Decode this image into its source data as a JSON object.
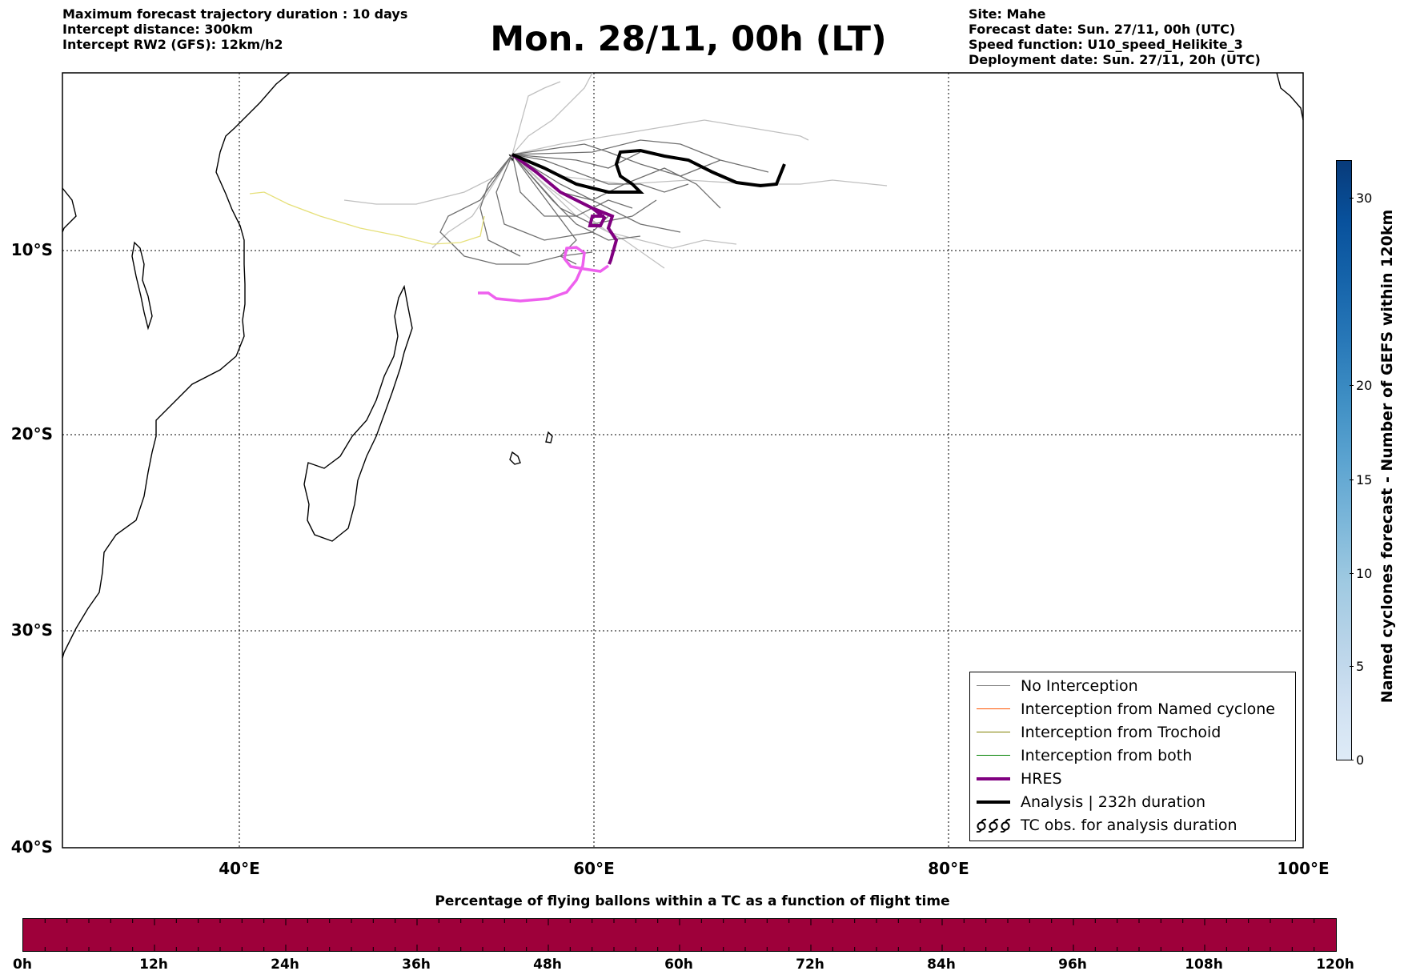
{
  "header": {
    "left_lines": [
      "Maximum forecast trajectory duration : 10 days",
      "Intercept distance: 300km",
      "Intercept RW2 (GFS):  12km/h2"
    ],
    "title": "Mon. 28/11, 00h (LT)",
    "right_lines": [
      "Site: Mahe",
      "Forecast date: Sun. 27/11, 00h (UTC)",
      "Speed function: U10_speed_Helikite_3",
      "Deployment date: Sun. 27/11, 20h (UTC)"
    ]
  },
  "map": {
    "lon_range": [
      30,
      100
    ],
    "lat_range": [
      -40,
      0
    ],
    "lat_labels": [
      "10°S",
      "20°S",
      "30°S",
      "40°S"
    ],
    "lon_labels": [
      "40°E",
      "60°E",
      "80°E",
      "100°E"
    ],
    "gridlines": "dotted",
    "site": "Mahe"
  },
  "legend": {
    "placement": "lower-right",
    "items": [
      {
        "label": "No Interception",
        "color": "#808080",
        "style": "thin"
      },
      {
        "label": "Interception from Named cyclone",
        "color": "#ff5500",
        "style": "thin"
      },
      {
        "label": "Interception from Trochoid",
        "color": "#808000",
        "style": "thin"
      },
      {
        "label": "Interception from both",
        "color": "#008000",
        "style": "thin"
      },
      {
        "label": "HRES",
        "color": "#800080",
        "style": "thick"
      },
      {
        "label": "Analysis | 232h duration",
        "color": "#000000",
        "style": "thick"
      },
      {
        "label": "TC obs. for analysis duration",
        "color": "#000000",
        "style": "symbol",
        "icon": "cyclone-symbol"
      }
    ]
  },
  "colorbar": {
    "label": "Named cyclones forecast - Number of GEFS within 120km",
    "ticks": [
      "0",
      "5",
      "10",
      "15",
      "20",
      "30"
    ],
    "colors": [
      "#deebf7",
      "#08306b"
    ]
  },
  "time_bar": {
    "title": "Percentage of flying ballons within a TC as a function of flight time",
    "color": "#9e003a",
    "labels": [
      "0h",
      "12h",
      "24h",
      "36h",
      "48h",
      "60h",
      "72h",
      "84h",
      "96h",
      "108h",
      "120h"
    ]
  }
}
